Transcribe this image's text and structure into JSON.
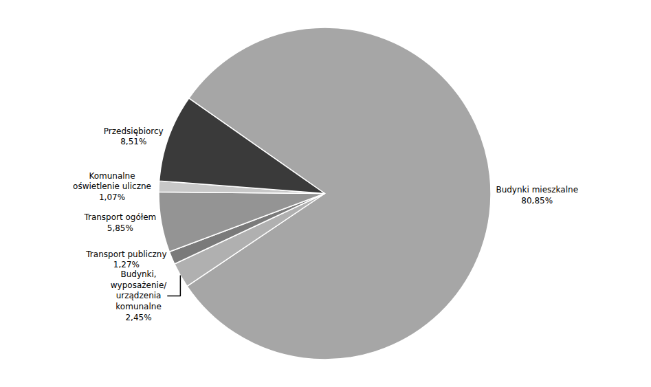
{
  "chart_data": {
    "type": "pie",
    "categories": [
      "Budynki mieszkalne",
      "Budynki,\nwyposażenie/\nurządzenia\nkomunalne",
      "Transport publiczny",
      "Transport ogółem",
      "Komunalne\noświetlenie uliczne",
      "Przedsiębiorcy"
    ],
    "values": [
      80.85,
      2.45,
      1.27,
      5.85,
      1.07,
      8.51
    ],
    "value_labels": [
      "80,85%",
      "2,45%",
      "1,27%",
      "5,85%",
      "1,07%",
      "8,51%"
    ],
    "colors": [
      "#a6a6a6",
      "#b0b0b0",
      "#7a7a7a",
      "#949494",
      "#c8c8c8",
      "#3a3a3a"
    ],
    "data_labels": true
  }
}
